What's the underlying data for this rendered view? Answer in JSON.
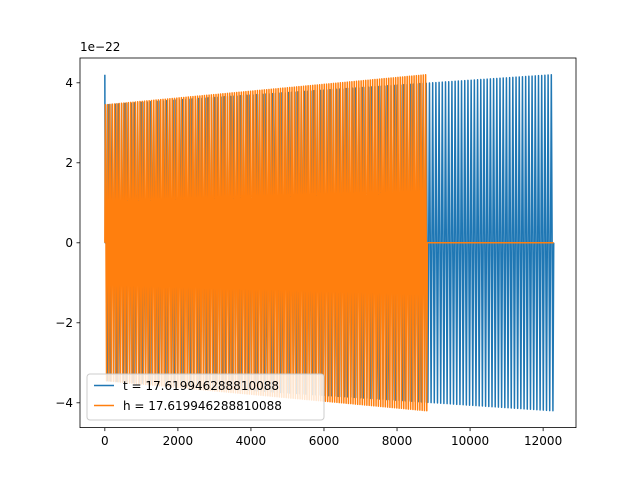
{
  "chart_data": {
    "type": "line",
    "title": "",
    "xlabel": "",
    "ylabel": "",
    "y_offset_label": "1e−22",
    "xlim": [
      -680,
      12900
    ],
    "ylim": [
      -4.62,
      4.62
    ],
    "xticks": [
      0,
      2000,
      4000,
      6000,
      8000,
      10000,
      12000
    ],
    "xtick_labels": [
      "0",
      "2000",
      "4000",
      "6000",
      "8000",
      "10000",
      "12000"
    ],
    "yticks": [
      -4,
      -2,
      0,
      2,
      4
    ],
    "ytick_labels": [
      "−4",
      "−2",
      "0",
      "2",
      "4"
    ],
    "grid": false,
    "legend_position": "lower-left",
    "series": [
      {
        "name": "t = 17.619946288810088",
        "color": "#1f77b4",
        "x_start": 0,
        "x_end": 12290,
        "initial_spike": 4.2,
        "start_amplitude": 3.45,
        "end_amplitude": 4.2,
        "oscillation_count": 140
      },
      {
        "name": "h = 17.619946288810088",
        "color": "#ff7f0e",
        "x_start": 0,
        "x_end": 8830,
        "start_amplitude": 3.45,
        "end_amplitude": 4.2,
        "oscillation_count": 140,
        "flat_after": {
          "x_start": 8830,
          "x_end": 12290,
          "value": 0
        }
      }
    ]
  }
}
